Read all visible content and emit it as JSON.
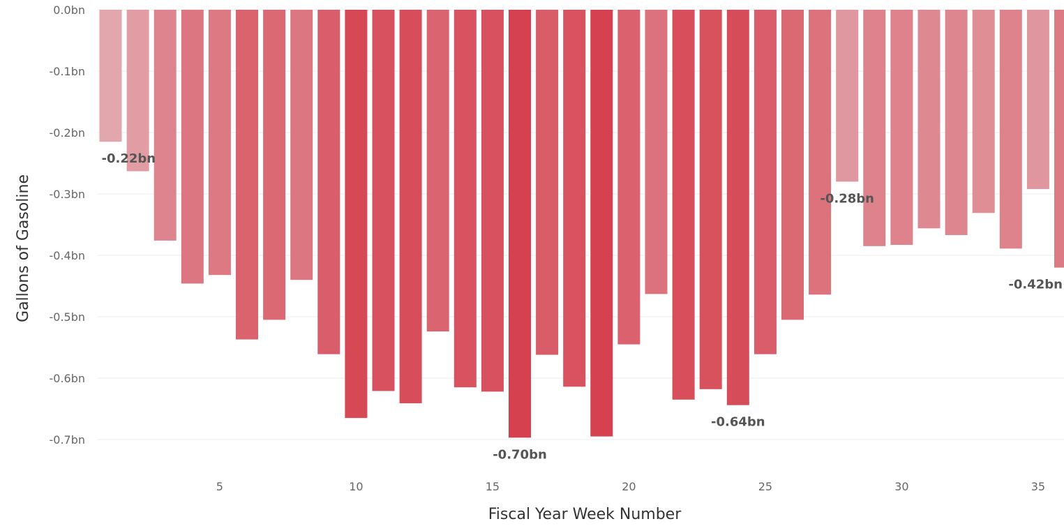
{
  "chart_data": {
    "type": "bar",
    "xlabel": "Fiscal Year Week Number",
    "ylabel": "Gallons of Gasoline",
    "ylim": [
      -0.7,
      0.0
    ],
    "yticks": [
      "0.0bn",
      "-0.1bn",
      "-0.2bn",
      "-0.3bn",
      "-0.4bn",
      "-0.5bn",
      "-0.6bn",
      "-0.7bn"
    ],
    "ytick_values": [
      0.0,
      -0.1,
      -0.2,
      -0.3,
      -0.4,
      -0.5,
      -0.6,
      -0.7
    ],
    "xticks": [
      "5",
      "10",
      "15",
      "20",
      "25",
      "30",
      "35"
    ],
    "xtick_values": [
      5,
      10,
      15,
      20,
      25,
      30,
      35
    ],
    "grid": true,
    "colors": {
      "light": "#e2a6ad",
      "dark": "#d6414f"
    },
    "x": [
      1,
      2,
      3,
      4,
      5,
      6,
      7,
      8,
      9,
      10,
      11,
      12,
      13,
      14,
      15,
      16,
      17,
      18,
      19,
      20,
      21,
      22,
      23,
      24,
      25,
      26,
      27,
      28,
      29,
      30,
      31,
      32,
      33,
      34,
      35,
      36
    ],
    "values": [
      -0.215,
      -0.263,
      -0.376,
      -0.446,
      -0.432,
      -0.537,
      -0.505,
      -0.44,
      -0.561,
      -0.665,
      -0.621,
      -0.641,
      -0.524,
      -0.615,
      -0.622,
      -0.697,
      -0.562,
      -0.614,
      -0.695,
      -0.545,
      -0.463,
      -0.635,
      -0.618,
      -0.644,
      -0.561,
      -0.505,
      -0.464,
      -0.28,
      -0.385,
      -0.383,
      -0.356,
      -0.367,
      -0.331,
      -0.389,
      -0.292,
      -0.42
    ],
    "data_labels": [
      {
        "x": 1,
        "text": "-0.22bn"
      },
      {
        "x": 16,
        "text": "-0.70bn"
      },
      {
        "x": 24,
        "text": "-0.64bn"
      },
      {
        "x": 28,
        "text": "-0.28bn"
      },
      {
        "x": 36,
        "text": "-0.42bn"
      }
    ]
  }
}
